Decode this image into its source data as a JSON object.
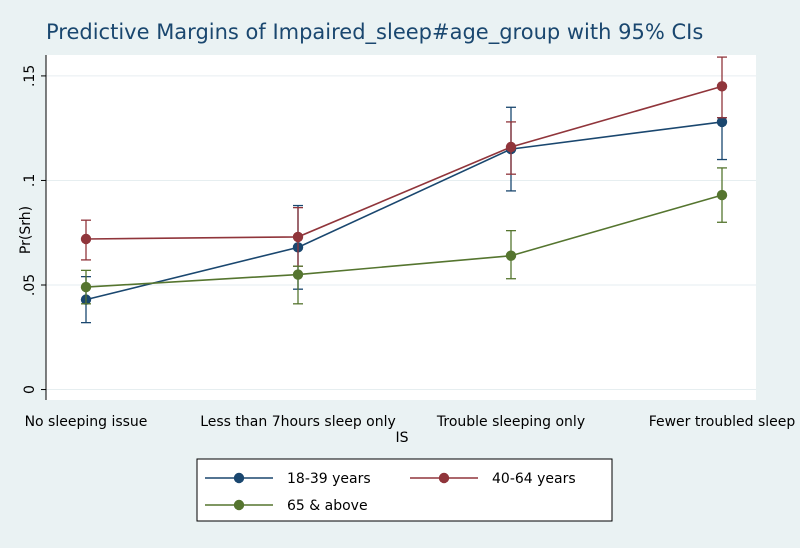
{
  "chart_data": {
    "type": "line",
    "title": "Predictive Margins of Impaired_sleep#age_group with 95% CIs",
    "xlabel": "IS",
    "ylabel": "Pr(Srh)",
    "categories": [
      "No sleeping issue",
      "Less than 7hours sleep only",
      "Trouble sleeping only",
      "Fewer troubled sleep"
    ],
    "ylim": [
      -0.005,
      0.16
    ],
    "yticks": [
      0,
      0.05,
      0.1,
      0.15
    ],
    "ytick_labels": [
      "0",
      ".05",
      ".1",
      ".15"
    ],
    "grid": true,
    "legend_position": "bottom",
    "series": [
      {
        "name": "18-39 years",
        "color": "#1a476f",
        "values": [
          0.043,
          0.068,
          0.115,
          0.128
        ],
        "ci_lower": [
          0.032,
          0.048,
          0.095,
          0.11
        ],
        "ci_upper": [
          0.054,
          0.088,
          0.135,
          0.13
        ]
      },
      {
        "name": "40-64 years",
        "color": "#90353b",
        "values": [
          0.072,
          0.073,
          0.116,
          0.145
        ],
        "ci_lower": [
          0.062,
          0.059,
          0.103,
          0.13
        ],
        "ci_upper": [
          0.081,
          0.087,
          0.128,
          0.159
        ]
      },
      {
        "name": "65 & above",
        "color": "#55752f",
        "values": [
          0.049,
          0.055,
          0.064,
          0.093
        ],
        "ci_lower": [
          0.041,
          0.041,
          0.053,
          0.08
        ],
        "ci_upper": [
          0.057,
          0.059,
          0.076,
          0.106
        ]
      }
    ]
  }
}
